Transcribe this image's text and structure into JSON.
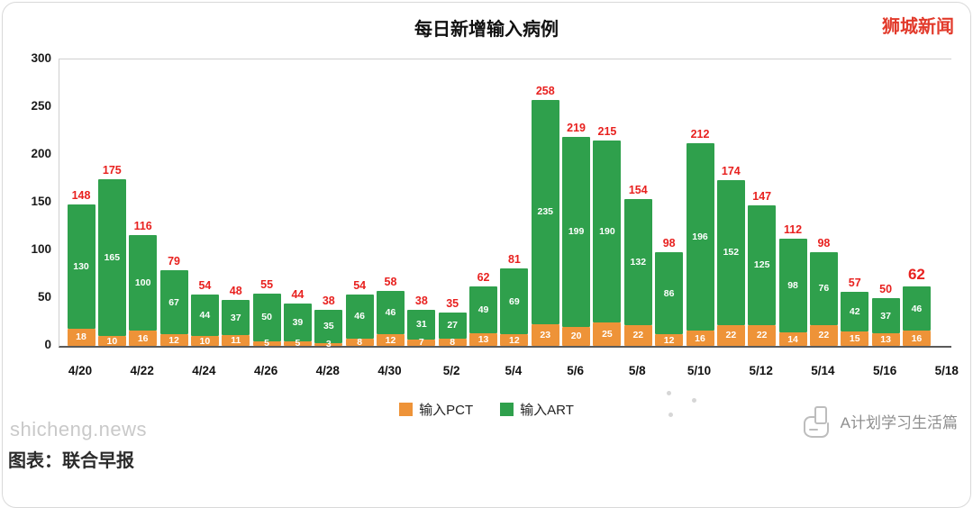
{
  "page": {
    "watermark_topright": "狮城新闻",
    "watermark_bottomleft": "shicheng.news",
    "caption_bottom": "图表：联合早报",
    "brand_bottomright": "A计划学习生活篇"
  },
  "chart_data": {
    "type": "bar",
    "stacked": true,
    "title": "每日新增输入病例",
    "xlabel": "",
    "ylabel": "",
    "ylim": [
      0,
      300
    ],
    "yticks": [
      300,
      250,
      200,
      150,
      100,
      50,
      0
    ],
    "grid": false,
    "legend_position": "bottom",
    "x_tick_labels": [
      "4/20",
      "4/22",
      "4/24",
      "4/26",
      "4/28",
      "4/30",
      "5/2",
      "5/4",
      "5/6",
      "5/8",
      "5/10",
      "5/12",
      "5/14",
      "5/16",
      "5/18"
    ],
    "series": [
      {
        "name": "输入PCT",
        "color": "#ee9338",
        "values": [
          18,
          10,
          16,
          12,
          10,
          11,
          5,
          5,
          3,
          8,
          12,
          7,
          8,
          13,
          12,
          23,
          20,
          25,
          22,
          12,
          16,
          22,
          22,
          14,
          22,
          15,
          13,
          16
        ]
      },
      {
        "name": "输入ART",
        "color": "#2fa04c",
        "values": [
          130,
          165,
          100,
          67,
          44,
          37,
          50,
          39,
          35,
          46,
          46,
          31,
          27,
          49,
          69,
          235,
          199,
          190,
          132,
          86,
          196,
          152,
          125,
          98,
          76,
          42,
          37,
          46
        ]
      }
    ],
    "totals": [
      148,
      175,
      116,
      79,
      54,
      48,
      55,
      44,
      38,
      54,
      58,
      38,
      35,
      62,
      81,
      258,
      219,
      215,
      154,
      98,
      212,
      174,
      147,
      112,
      98,
      57,
      50,
      62
    ],
    "totals_color": "#e8211f"
  }
}
